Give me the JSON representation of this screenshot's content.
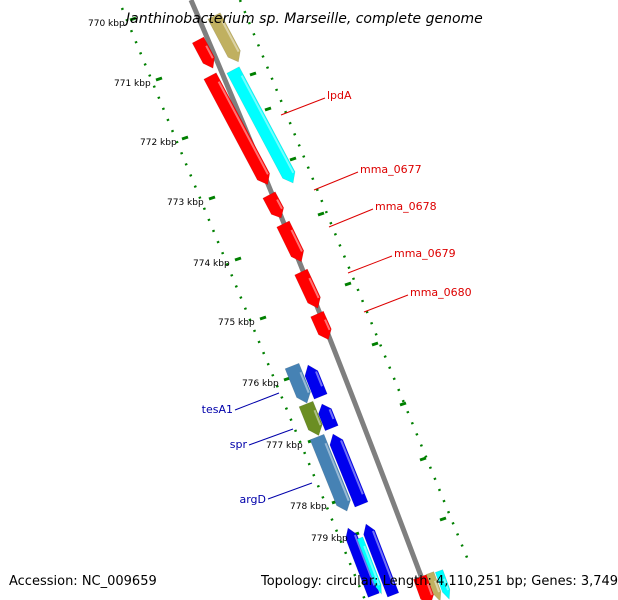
{
  "title": "Janthinobacterium sp. Marseille, complete genome",
  "footer": {
    "accession": "Accession: NC_009659",
    "summary": "Topology: circular; Length: 4,110,251 bp; Genes: 3,749"
  },
  "tick_labels": [
    "770 kbp",
    "771 kbp",
    "772 kbp",
    "773 kbp",
    "774 kbp",
    "775 kbp",
    "776 kbp",
    "777 kbp",
    "778 kbp",
    "779 kbp"
  ],
  "genes": [
    {
      "name": "lpdA",
      "color": "#dd0000"
    },
    {
      "name": "mma_0677",
      "color": "#dd0000"
    },
    {
      "name": "mma_0678",
      "color": "#dd0000"
    },
    {
      "name": "mma_0679",
      "color": "#dd0000"
    },
    {
      "name": "mma_0680",
      "color": "#dd0000"
    },
    {
      "name": "tesA1",
      "color": "#0000aa"
    },
    {
      "name": "spr",
      "color": "#0000aa"
    },
    {
      "name": "argD",
      "color": "#0000aa"
    }
  ],
  "colors": {
    "backbone": "#808080",
    "ticks": "#008000",
    "forward_cds": "#ff0000",
    "reverse_cds": "#0000ee",
    "cog_cyan": "#00ffff",
    "cog_olive": "#c0b060",
    "cog_steelblue": "#4682b4",
    "cog_green": "#6b8e23",
    "label_red": "#dd0000",
    "label_blue": "#0000aa"
  }
}
